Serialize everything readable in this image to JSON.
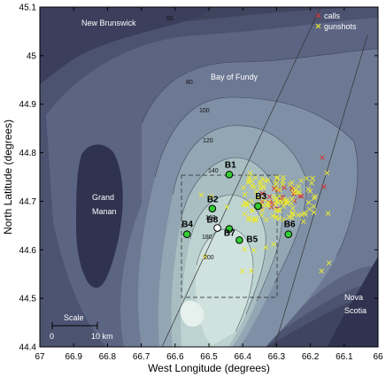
{
  "axes": {
    "xlabel": "West Longitude (degrees)",
    "ylabel": "North Latitude (degrees)",
    "x_ticks": [
      "67",
      "66.9",
      "66.8",
      "66.7",
      "66.6",
      "66.5",
      "66.4",
      "66.3",
      "66.2",
      "66.1",
      "66"
    ],
    "y_ticks": [
      "45.1",
      "45",
      "44.9",
      "44.8",
      "44.7",
      "44.6",
      "44.5",
      "44.4"
    ]
  },
  "places": {
    "new_brunswick": "New Brunswick",
    "bay_of_fundy": "Bay of Fundy",
    "grand": "Grand",
    "manan": "Manan",
    "nova": "Nova",
    "scotia": "Scotia"
  },
  "contours": [
    "60",
    "80",
    "100",
    "120",
    "140",
    "160",
    "180",
    "200"
  ],
  "legend": {
    "calls": "calls",
    "gunshots": "gunshots"
  },
  "scale": {
    "title": "Scale",
    "zero": "0",
    "ten": "10 km"
  },
  "buoys": [
    {
      "id": "B1",
      "lon": 66.44,
      "lat": 44.755
    },
    {
      "id": "B2",
      "lon": 66.49,
      "lat": 44.685
    },
    {
      "id": "B3",
      "lon": 66.355,
      "lat": 44.69
    },
    {
      "id": "B4",
      "lon": 66.565,
      "lat": 44.632
    },
    {
      "id": "B5",
      "lon": 66.41,
      "lat": 44.62
    },
    {
      "id": "B6",
      "lon": 66.265,
      "lat": 44.632
    },
    {
      "id": "B7",
      "lon": 66.44,
      "lat": 44.643
    },
    {
      "id": "B8",
      "lon": 66.475,
      "lat": 44.645
    }
  ],
  "colors": {
    "calls": "#d23a3a",
    "gunshots": "#e6e63a",
    "buoy_fill": "#33cc33",
    "land": "#3b3f5c"
  }
}
